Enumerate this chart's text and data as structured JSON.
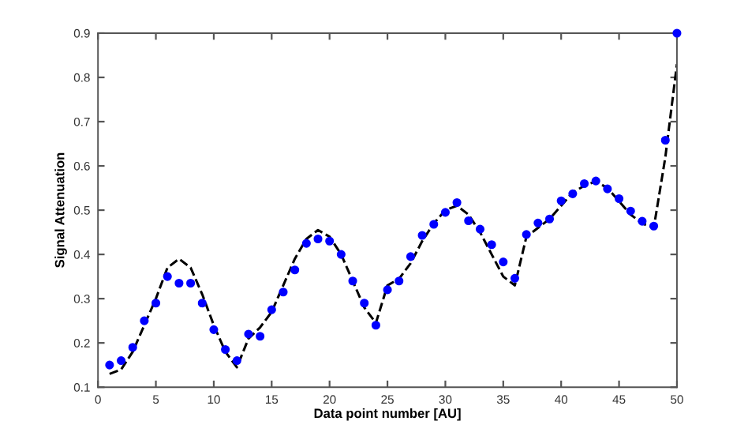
{
  "chart_data": {
    "type": "scatter",
    "xlabel": "Data point number [AU]",
    "ylabel": "Signal Attenuation",
    "xlim": [
      0,
      50
    ],
    "ylim": [
      0.1,
      0.9
    ],
    "xticks": [
      0,
      5,
      10,
      15,
      20,
      25,
      30,
      35,
      40,
      45,
      50
    ],
    "yticks": [
      0.1,
      0.2,
      0.3,
      0.4,
      0.5,
      0.6,
      0.7,
      0.8,
      0.9
    ],
    "grid": false,
    "legend": false,
    "series": [
      {
        "type": "line",
        "color": "#000000",
        "line_style": "dashed",
        "marker": "none",
        "x": [
          1,
          2,
          3,
          4,
          5,
          6,
          7,
          8,
          9,
          10,
          11,
          12,
          13,
          14,
          15,
          16,
          17,
          18,
          19,
          20,
          21,
          22,
          23,
          24,
          25,
          26,
          27,
          28,
          29,
          30,
          31,
          32,
          33,
          34,
          35,
          36,
          37,
          38,
          39,
          40,
          41,
          42,
          43,
          44,
          45,
          46,
          47,
          48,
          49,
          50
        ],
        "values": [
          0.13,
          0.14,
          0.18,
          0.24,
          0.3,
          0.37,
          0.39,
          0.37,
          0.31,
          0.24,
          0.18,
          0.145,
          0.21,
          0.235,
          0.27,
          0.33,
          0.39,
          0.435,
          0.455,
          0.44,
          0.4,
          0.34,
          0.28,
          0.245,
          0.33,
          0.345,
          0.38,
          0.43,
          0.47,
          0.5,
          0.51,
          0.49,
          0.45,
          0.4,
          0.35,
          0.33,
          0.44,
          0.46,
          0.48,
          0.51,
          0.54,
          0.555,
          0.565,
          0.55,
          0.52,
          0.49,
          0.47,
          0.46,
          0.62,
          0.83
        ]
      },
      {
        "color": "#0000ff",
        "marker": "circle",
        "x": [
          1,
          2,
          3,
          4,
          5,
          6,
          7,
          8,
          9,
          10,
          11,
          12,
          13,
          14,
          15,
          16,
          17,
          18,
          19,
          20,
          21,
          22,
          23,
          24,
          25,
          26,
          27,
          28,
          29,
          30,
          31,
          32,
          33,
          34,
          35,
          36,
          37,
          38,
          39,
          40,
          41,
          42,
          43,
          44,
          45,
          46,
          47,
          48,
          49,
          50
        ],
        "values": [
          0.15,
          0.16,
          0.19,
          0.25,
          0.29,
          0.35,
          0.335,
          0.335,
          0.29,
          0.23,
          0.185,
          0.16,
          0.22,
          0.215,
          0.275,
          0.315,
          0.365,
          0.425,
          0.435,
          0.43,
          0.4,
          0.34,
          0.29,
          0.24,
          0.32,
          0.34,
          0.395,
          0.443,
          0.468,
          0.495,
          0.517,
          0.476,
          0.457,
          0.422,
          0.383,
          0.346,
          0.445,
          0.471,
          0.48,
          0.521,
          0.537,
          0.56,
          0.566,
          0.548,
          0.526,
          0.498,
          0.475,
          0.464,
          0.658,
          0.9
        ]
      }
    ]
  }
}
